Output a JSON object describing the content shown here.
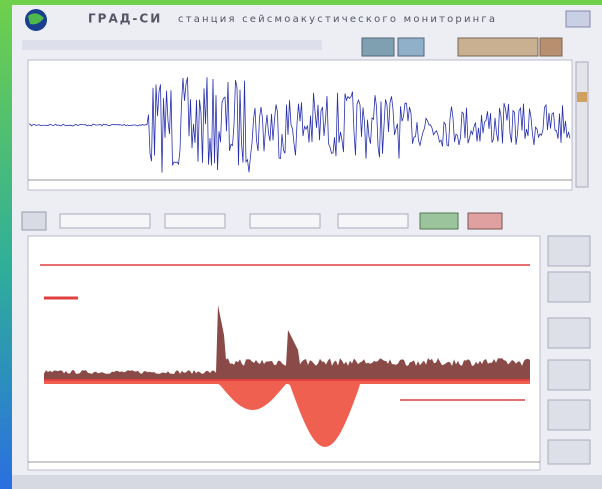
{
  "header": {
    "title": "ГРАД-СИ",
    "subtitle": "станция сейсмоакустического мониторинга"
  }
}
